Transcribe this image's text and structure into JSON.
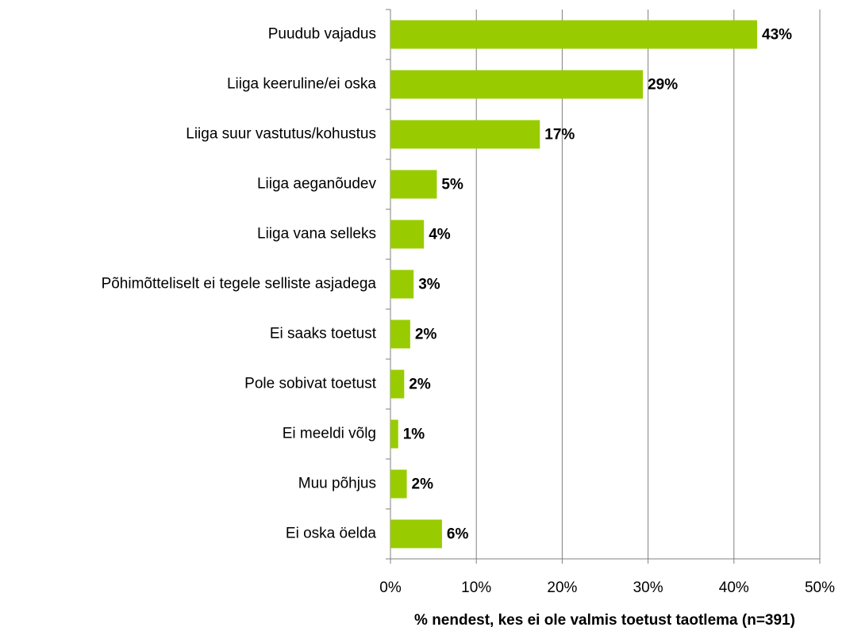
{
  "chart_data": {
    "type": "hbar",
    "categories": [
      "Puudub vajadus",
      "Liiga keeruline/ei oska",
      "Liiga suur vastutus/kohustus",
      "Liiga aeganõudev",
      "Liiga vana selleks",
      "Põhimõtteliselt ei tegele selliste asjadega",
      "Ei saaks toetust",
      "Pole sobivat toetust",
      "Ei meeldi võlg",
      "Muu põhjus",
      "Ei oska öelda"
    ],
    "values": [
      42.7,
      29.4,
      17.4,
      5.4,
      3.9,
      2.7,
      2.3,
      1.6,
      0.9,
      1.9,
      6.0
    ],
    "value_labels": [
      "43%",
      "29%",
      "17%",
      "5%",
      "4%",
      "3%",
      "2%",
      "2%",
      "1%",
      "2%",
      "6%"
    ],
    "color": "#99cc00",
    "xlim": [
      0,
      50
    ],
    "xticks": [
      {
        "value": 0,
        "label": "0%"
      },
      {
        "value": 10,
        "label": "10%"
      },
      {
        "value": 20,
        "label": "20%"
      },
      {
        "value": 30,
        "label": "30%"
      },
      {
        "value": 40,
        "label": "40%"
      },
      {
        "value": 50,
        "label": "50%"
      }
    ],
    "xlabel": "% nendest, kes ei ole valmis toetust taotlema (n=391)",
    "grid": true
  }
}
